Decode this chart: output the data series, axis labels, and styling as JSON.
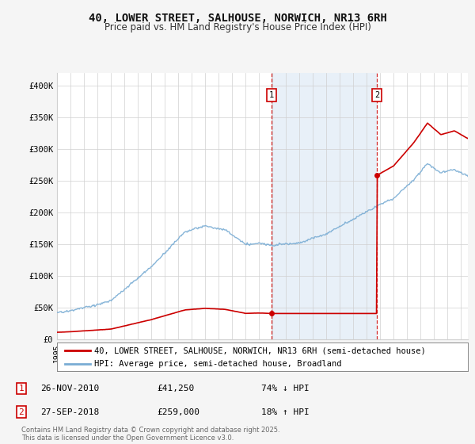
{
  "title": "40, LOWER STREET, SALHOUSE, NORWICH, NR13 6RH",
  "subtitle": "Price paid vs. HM Land Registry's House Price Index (HPI)",
  "ylabel_ticks": [
    "£0",
    "£50K",
    "£100K",
    "£150K",
    "£200K",
    "£250K",
    "£300K",
    "£350K",
    "£400K"
  ],
  "ytick_values": [
    0,
    50000,
    100000,
    150000,
    200000,
    250000,
    300000,
    350000,
    400000
  ],
  "ylim": [
    0,
    420000
  ],
  "xlim_start": 1995.0,
  "xlim_end": 2025.5,
  "sale1_year": 2010.9,
  "sale1_price": 41250,
  "sale1_label": "1",
  "sale2_year": 2018.75,
  "sale2_price": 259000,
  "sale2_label": "2",
  "legend_line1": "40, LOWER STREET, SALHOUSE, NORWICH, NR13 6RH (semi-detached house)",
  "legend_line2": "HPI: Average price, semi-detached house, Broadland",
  "footer": "Contains HM Land Registry data © Crown copyright and database right 2025.\nThis data is licensed under the Open Government Licence v3.0.",
  "line_color_red": "#cc0000",
  "line_color_blue": "#7aadd4",
  "shade_color": "#e8f0f8",
  "background_color": "#f5f5f5",
  "plot_bg_color": "#ffffff",
  "grid_color": "#d0d0d0",
  "title_fontsize": 10,
  "subtitle_fontsize": 8.5,
  "tick_fontsize": 7.5,
  "legend_fontsize": 7.5,
  "annotation_fontsize": 8,
  "footer_fontsize": 6
}
